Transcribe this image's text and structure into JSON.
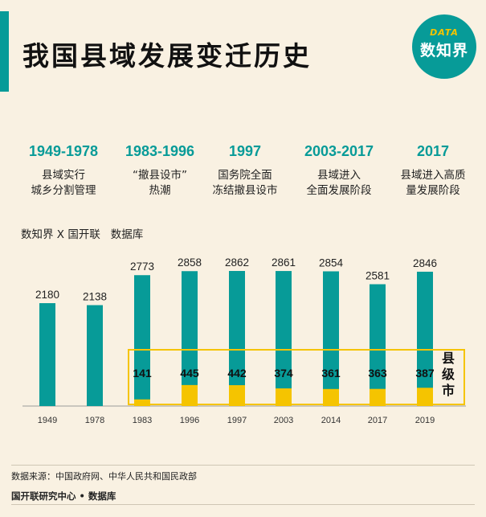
{
  "title": "我国县域发展变迁历史",
  "logo": {
    "top": "DATA",
    "main": "数知界"
  },
  "periods": [
    {
      "year": "1949-1978",
      "desc": "县域实行\n城乡分割管理"
    },
    {
      "year": "1983-1996",
      "desc": "“撤县设市”\n热潮"
    },
    {
      "year": "1997",
      "desc": "国务院全面\n冻结撤县设市"
    },
    {
      "year": "2003-2017",
      "desc": "县域进入\n全面发展阶段"
    },
    {
      "year": "2017",
      "desc": "县域进入高质\n量发展阶段"
    }
  ],
  "source_top": "数知界 X 国开联   数据库",
  "chart_data": {
    "type": "bar",
    "categories": [
      "1949",
      "1978",
      "1983",
      "1996",
      "1997",
      "2003",
      "2014",
      "2017",
      "2019"
    ],
    "series": [
      {
        "name": "",
        "values": [
          2180,
          2138,
          2773,
          2858,
          2862,
          2861,
          2854,
          2581,
          2846
        ]
      },
      {
        "name": "县级市",
        "values": [
          null,
          null,
          141,
          445,
          442,
          374,
          361,
          363,
          387
        ]
      }
    ],
    "legend_label": "县级市",
    "colors": {
      "total": "#079b98",
      "city": "#f5c400",
      "highlight_box": "#f5c400"
    }
  },
  "footnote": "数据来源：中国政府网、中华人民共和国民政部",
  "footer_org": "国开联研究中心 • 数据库"
}
